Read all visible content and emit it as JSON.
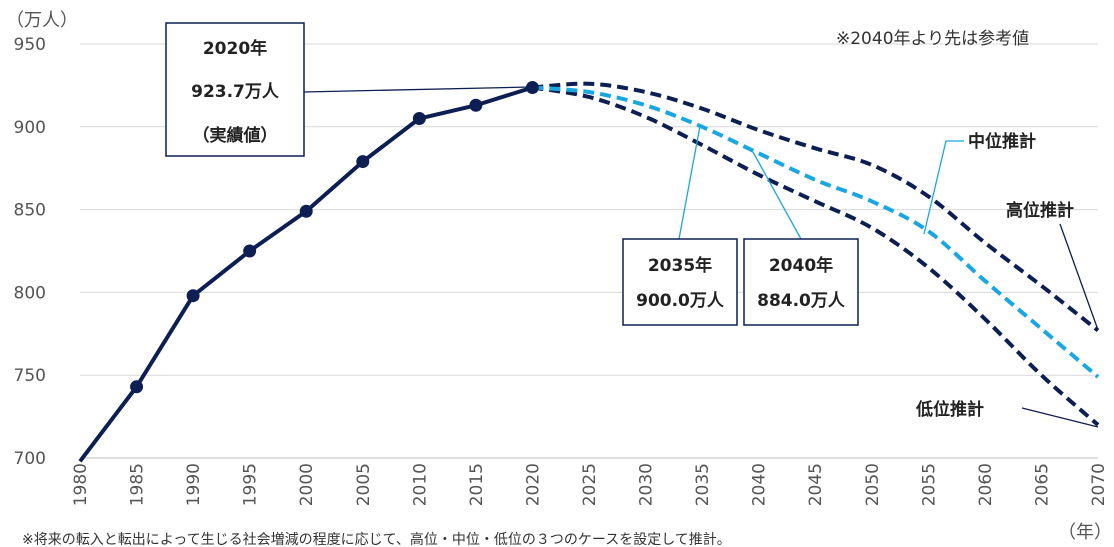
{
  "chart_data": {
    "type": "line",
    "y_unit": "（万人）",
    "x_unit": "（年）",
    "ylim": [
      700,
      950
    ],
    "yticks": [
      700,
      750,
      800,
      850,
      900,
      950
    ],
    "xlim": [
      1980,
      2070
    ],
    "xticks": [
      1980,
      1985,
      1990,
      1995,
      2000,
      2005,
      2010,
      2015,
      2020,
      2025,
      2030,
      2035,
      2040,
      2045,
      2050,
      2055,
      2060,
      2065,
      2070
    ],
    "grid": true,
    "note": "※2040年より先は参考値",
    "footnote": "※将来の転入と転出によって生じる社会増減の程度に応じて、高位・中位・低位の３つのケースを設定して推計。",
    "series": [
      {
        "name": "実績値",
        "color": "#0d1f52",
        "style": "solid-markers",
        "x": [
          1980,
          1985,
          1990,
          1995,
          2000,
          2005,
          2010,
          2015,
          2020
        ],
        "values": [
          698,
          743,
          798,
          825,
          849,
          879,
          905,
          913,
          923.7
        ]
      },
      {
        "name": "高位推計",
        "color": "#0d1f52",
        "style": "dashed",
        "x": [
          2020,
          2025,
          2030,
          2035,
          2040,
          2045,
          2050,
          2055,
          2060,
          2065,
          2070
        ],
        "values": [
          923.7,
          926,
          921,
          911,
          898,
          887,
          877,
          858,
          830,
          804,
          777
        ]
      },
      {
        "name": "中位推計",
        "color": "#1aa6e0",
        "style": "dashed",
        "x": [
          2020,
          2025,
          2030,
          2035,
          2040,
          2045,
          2050,
          2055,
          2060,
          2065,
          2070
        ],
        "values": [
          923.7,
          921,
          913,
          900,
          884,
          868,
          855,
          837,
          807,
          778,
          749
        ]
      },
      {
        "name": "低位推計",
        "color": "#0d1f52",
        "style": "dashed",
        "x": [
          2020,
          2025,
          2030,
          2035,
          2040,
          2045,
          2050,
          2055,
          2060,
          2065,
          2070
        ],
        "values": [
          923.7,
          918,
          906,
          889,
          871,
          855,
          839,
          815,
          784,
          750,
          720
        ]
      }
    ],
    "annotations": {
      "a2020": [
        "2020年",
        "923.7万人",
        "（実績値）"
      ],
      "a2035": [
        "2035年",
        "900.0万人"
      ],
      "a2040": [
        "2040年",
        "884.0万人"
      ],
      "label_mid": "中位推計",
      "label_high": "高位推計",
      "label_low": "低位推計"
    }
  }
}
